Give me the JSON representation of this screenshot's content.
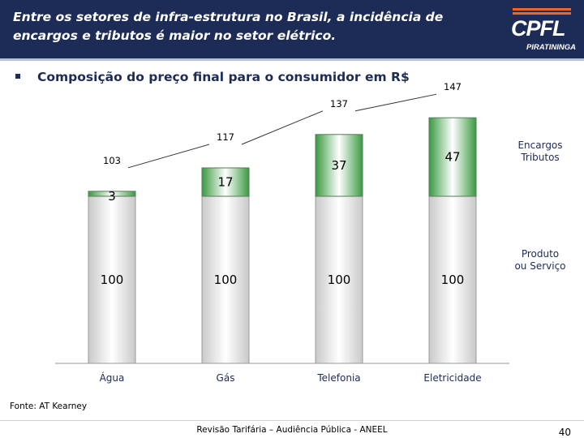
{
  "header": {
    "title_line1": "Entre os setores de infra-estrutura no Brasil, a incidência de",
    "title_line2": "encargos e tributos é maior no setor elétrico."
  },
  "logo": {
    "text": "CPFL",
    "subtext": "PIRATININGA"
  },
  "subtitle": "Composição do preço final para o consumidor em R$",
  "colors": {
    "header_bg": "#1d2b57",
    "logo_accent": "#f26522",
    "encargos_green": "#3a9a40"
  },
  "chart_data": {
    "type": "bar",
    "stacked": true,
    "categories": [
      "Água",
      "Gás",
      "Telefonia",
      "Eletricidade"
    ],
    "series": [
      {
        "name": "Produto ou Serviço",
        "values": [
          100,
          100,
          100,
          100
        ]
      },
      {
        "name": "Encargos Tributos",
        "values": [
          3,
          17,
          37,
          47
        ]
      }
    ],
    "totals": [
      103,
      117,
      137,
      147
    ],
    "legend": [
      "Encargos Tributos",
      "Produto ou Serviço"
    ],
    "legend_placement": "right",
    "title": "",
    "xlabel": "",
    "ylabel": "",
    "ylim": [
      0,
      160
    ],
    "grid": false
  },
  "source": "Fonte: AT Kearney",
  "footer": {
    "text": "Revisão Tarifária – Audiência Pública - ANEEL",
    "page": "40"
  }
}
